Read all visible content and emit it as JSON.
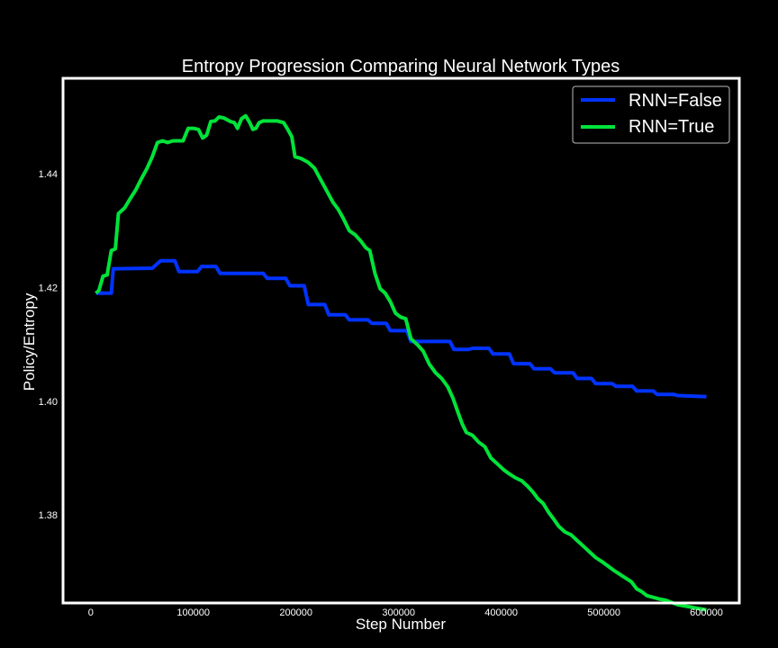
{
  "chart_data": {
    "type": "line",
    "title": "Entropy Progression Comparing Neural Network Types",
    "xlabel": "Step Number",
    "ylabel": "Policy/Entropy",
    "xlim": [
      -27000,
      632000
    ],
    "ylim": [
      1.3645,
      1.4568
    ],
    "x_ticks": [
      0,
      100000,
      200000,
      300000,
      400000,
      500000,
      600000
    ],
    "y_ticks": [
      1.38,
      1.4,
      1.42,
      1.44
    ],
    "y_tick_labels": [
      "1.38",
      "1.40",
      "1.42",
      "1.44"
    ],
    "grid": false,
    "legend_position": "top-right",
    "background": "#000000",
    "foreground": "#ffffff",
    "series": [
      {
        "name": "RNN=False",
        "color": "#0033ff",
        "points": [
          [
            5000,
            1.419
          ],
          [
            20000,
            1.419
          ],
          [
            22000,
            1.4233
          ],
          [
            60000,
            1.4234
          ],
          [
            68000,
            1.4247
          ],
          [
            82000,
            1.4247
          ],
          [
            86000,
            1.4228
          ],
          [
            104000,
            1.4228
          ],
          [
            108000,
            1.4237
          ],
          [
            122000,
            1.4237
          ],
          [
            126000,
            1.4225
          ],
          [
            168000,
            1.4225
          ],
          [
            172000,
            1.4216
          ],
          [
            190000,
            1.4216
          ],
          [
            194000,
            1.4203
          ],
          [
            208000,
            1.4203
          ],
          [
            212000,
            1.417
          ],
          [
            228000,
            1.417
          ],
          [
            232000,
            1.4152
          ],
          [
            248000,
            1.4152
          ],
          [
            252000,
            1.4143
          ],
          [
            270000,
            1.4143
          ],
          [
            274000,
            1.4137
          ],
          [
            288000,
            1.4137
          ],
          [
            292000,
            1.4124
          ],
          [
            308000,
            1.4124
          ],
          [
            312000,
            1.4105
          ],
          [
            350000,
            1.4105
          ],
          [
            354000,
            1.4091
          ],
          [
            368000,
            1.4091
          ],
          [
            372000,
            1.4093
          ],
          [
            388000,
            1.4093
          ],
          [
            392000,
            1.4083
          ],
          [
            408000,
            1.4083
          ],
          [
            412000,
            1.4066
          ],
          [
            428000,
            1.4066
          ],
          [
            432000,
            1.4057
          ],
          [
            448000,
            1.4057
          ],
          [
            452000,
            1.405
          ],
          [
            470000,
            1.405
          ],
          [
            474000,
            1.404
          ],
          [
            488000,
            1.404
          ],
          [
            492000,
            1.4031
          ],
          [
            508000,
            1.4031
          ],
          [
            512000,
            1.4026
          ],
          [
            528000,
            1.4026
          ],
          [
            532000,
            1.4018
          ],
          [
            548000,
            1.4018
          ],
          [
            552000,
            1.4012
          ],
          [
            568000,
            1.4012
          ],
          [
            572000,
            1.401
          ],
          [
            600000,
            1.4008
          ]
        ]
      },
      {
        "name": "RNN=True",
        "color": "#00e33a",
        "points": [
          [
            5000,
            1.419
          ],
          [
            8000,
            1.4195
          ],
          [
            12000,
            1.422
          ],
          [
            16000,
            1.4222
          ],
          [
            20000,
            1.4265
          ],
          [
            24000,
            1.4268
          ],
          [
            27000,
            1.433
          ],
          [
            33000,
            1.434
          ],
          [
            38000,
            1.4355
          ],
          [
            44000,
            1.4372
          ],
          [
            49000,
            1.439
          ],
          [
            55000,
            1.441
          ],
          [
            60000,
            1.443
          ],
          [
            65000,
            1.4455
          ],
          [
            70000,
            1.4458
          ],
          [
            75000,
            1.4455
          ],
          [
            80000,
            1.4458
          ],
          [
            85000,
            1.4458
          ],
          [
            90000,
            1.4458
          ],
          [
            95000,
            1.448
          ],
          [
            100000,
            1.448
          ],
          [
            105000,
            1.4478
          ],
          [
            109000,
            1.4463
          ],
          [
            113000,
            1.4468
          ],
          [
            117000,
            1.4492
          ],
          [
            121000,
            1.4493
          ],
          [
            125000,
            1.45
          ],
          [
            130000,
            1.4498
          ],
          [
            136000,
            1.4492
          ],
          [
            140000,
            1.449
          ],
          [
            143000,
            1.448
          ],
          [
            147000,
            1.4497
          ],
          [
            151000,
            1.4502
          ],
          [
            155000,
            1.449
          ],
          [
            158000,
            1.4478
          ],
          [
            161000,
            1.448
          ],
          [
            164000,
            1.449
          ],
          [
            168000,
            1.4493
          ],
          [
            175000,
            1.4493
          ],
          [
            182000,
            1.4493
          ],
          [
            188000,
            1.449
          ],
          [
            192000,
            1.4478
          ],
          [
            196000,
            1.4465
          ],
          [
            199000,
            1.443
          ],
          [
            205000,
            1.4427
          ],
          [
            212000,
            1.442
          ],
          [
            218000,
            1.441
          ],
          [
            224000,
            1.439
          ],
          [
            230000,
            1.437
          ],
          [
            236000,
            1.435
          ],
          [
            241000,
            1.4338
          ],
          [
            246000,
            1.4322
          ],
          [
            252000,
            1.43
          ],
          [
            258000,
            1.4292
          ],
          [
            263000,
            1.4282
          ],
          [
            268000,
            1.427
          ],
          [
            272000,
            1.4265
          ],
          [
            277000,
            1.4225
          ],
          [
            282000,
            1.4198
          ],
          [
            287000,
            1.419
          ],
          [
            292000,
            1.4175
          ],
          [
            297000,
            1.4155
          ],
          [
            302000,
            1.4148
          ],
          [
            307000,
            1.4145
          ],
          [
            312000,
            1.411
          ],
          [
            318000,
            1.41
          ],
          [
            324000,
            1.4088
          ],
          [
            330000,
            1.4065
          ],
          [
            336000,
            1.405
          ],
          [
            342000,
            1.404
          ],
          [
            348000,
            1.4025
          ],
          [
            353000,
            1.4005
          ],
          [
            358000,
            1.398
          ],
          [
            362000,
            1.396
          ],
          [
            366000,
            1.3945
          ],
          [
            372000,
            1.394
          ],
          [
            378000,
            1.3928
          ],
          [
            384000,
            1.392
          ],
          [
            390000,
            1.39
          ],
          [
            396000,
            1.389
          ],
          [
            402000,
            1.388
          ],
          [
            408000,
            1.3872
          ],
          [
            414000,
            1.3865
          ],
          [
            420000,
            1.386
          ],
          [
            426000,
            1.385
          ],
          [
            431000,
            1.384
          ],
          [
            436000,
            1.3828
          ],
          [
            441000,
            1.382
          ],
          [
            446000,
            1.3805
          ],
          [
            451000,
            1.3793
          ],
          [
            456000,
            1.378
          ],
          [
            462000,
            1.377
          ],
          [
            468000,
            1.3765
          ],
          [
            474000,
            1.3755
          ],
          [
            480000,
            1.3745
          ],
          [
            486000,
            1.3735
          ],
          [
            492000,
            1.3725
          ],
          [
            498000,
            1.3718
          ],
          [
            504000,
            1.371
          ],
          [
            510000,
            1.3702
          ],
          [
            516000,
            1.3695
          ],
          [
            522000,
            1.3688
          ],
          [
            527000,
            1.3682
          ],
          [
            532000,
            1.367
          ],
          [
            537000,
            1.3665
          ],
          [
            542000,
            1.3658
          ],
          [
            548000,
            1.3655
          ],
          [
            554000,
            1.3652
          ],
          [
            560000,
            1.365
          ],
          [
            566000,
            1.3646
          ],
          [
            572000,
            1.3642
          ],
          [
            578000,
            1.364
          ],
          [
            584000,
            1.3638
          ],
          [
            590000,
            1.3636
          ],
          [
            596000,
            1.3634
          ],
          [
            600000,
            1.3633
          ]
        ]
      }
    ]
  }
}
